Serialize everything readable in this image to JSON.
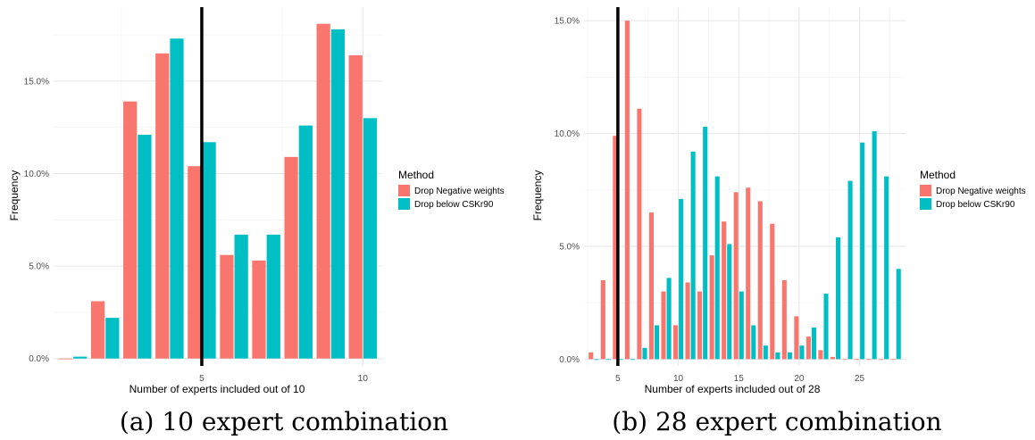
{
  "chart_data": [
    {
      "type": "bar",
      "xlabel": "Number of experts included out of 10",
      "ylabel": "Frequency",
      "x_ticks": [
        5,
        10
      ],
      "xlim": [
        0.4,
        10.6
      ],
      "y_ticks": [
        "0.0%",
        "5.0%",
        "10.0%",
        "15.0%"
      ],
      "y_tick_values": [
        0,
        5,
        10,
        15
      ],
      "ylim": [
        -0.4,
        19.0
      ],
      "vline": 5,
      "legend": {
        "title": "Method",
        "position": "right"
      },
      "series": [
        {
          "name": "Drop Negative weights",
          "color": "#F8766D",
          "x": [
            1,
            2,
            3,
            4,
            5,
            6,
            7,
            8,
            9,
            10
          ],
          "values": [
            0.0,
            3.1,
            13.9,
            16.5,
            10.4,
            5.6,
            5.3,
            10.9,
            18.1,
            16.4
          ]
        },
        {
          "name": "Drop below CSKr90",
          "color": "#00BFC4",
          "x": [
            1,
            2,
            3,
            4,
            5,
            6,
            7,
            8,
            9,
            10
          ],
          "values": [
            0.1,
            2.2,
            12.1,
            17.3,
            11.7,
            6.7,
            6.7,
            12.6,
            17.8,
            13.0
          ]
        }
      ],
      "caption": "(a) 10 expert combination"
    },
    {
      "type": "bar",
      "xlabel": "Number of experts included out of 28",
      "ylabel": "Frequency",
      "x_ticks": [
        5,
        10,
        15,
        20,
        25
      ],
      "xlim": [
        2.2,
        28.8
      ],
      "y_ticks": [
        "0.0%",
        "5.0%",
        "10.0%",
        "15.0%"
      ],
      "y_tick_values": [
        0,
        5,
        10,
        15
      ],
      "ylim": [
        -0.3,
        15.6
      ],
      "vline": 5,
      "legend": {
        "title": "Method",
        "position": "right"
      },
      "series": [
        {
          "name": "Drop Negative weights",
          "color": "#F8766D",
          "x": [
            3,
            4,
            5,
            6,
            7,
            8,
            9,
            10,
            11,
            12,
            13,
            14,
            15,
            16,
            17,
            18,
            19,
            20,
            21,
            22,
            23,
            24,
            25,
            26,
            27,
            28
          ],
          "values": [
            0.3,
            3.5,
            9.9,
            15.0,
            11.1,
            6.5,
            3.0,
            1.5,
            3.4,
            3.0,
            4.6,
            6.1,
            7.4,
            7.6,
            7.0,
            6.0,
            3.5,
            1.9,
            1.0,
            0.4,
            0.1,
            0.0,
            0.0,
            0.0,
            0.0,
            0.0
          ]
        },
        {
          "name": "Drop below CSKr90",
          "color": "#00BFC4",
          "x": [
            3,
            4,
            5,
            6,
            7,
            8,
            9,
            10,
            11,
            12,
            13,
            14,
            15,
            16,
            17,
            18,
            19,
            20,
            21,
            22,
            23,
            24,
            25,
            26,
            27,
            28
          ],
          "values": [
            0.0,
            0.0,
            0.0,
            0.0,
            0.5,
            1.5,
            3.6,
            7.1,
            9.2,
            10.3,
            8.1,
            5.1,
            3.0,
            1.5,
            0.6,
            0.3,
            0.3,
            0.6,
            1.4,
            2.9,
            5.4,
            7.9,
            9.6,
            10.1,
            8.1,
            4.0
          ]
        }
      ],
      "caption": "(b) 28 expert combination"
    }
  ]
}
